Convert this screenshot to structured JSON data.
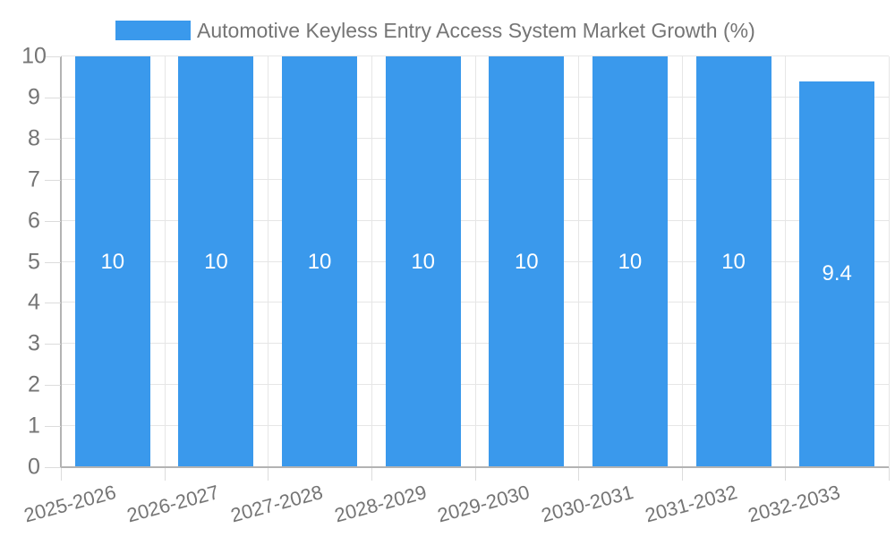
{
  "chart_data": {
    "type": "bar",
    "title": "Automotive Keyless Entry Access System Market Growth (%)",
    "legend_position": "top",
    "categories": [
      "2025-2026",
      "2026-2027",
      "2027-2028",
      "2028-2029",
      "2029-2030",
      "2030-2031",
      "2031-2032",
      "2032-2033"
    ],
    "series": [
      {
        "name": "Automotive Keyless Entry Access System Market Growth (%)",
        "values": [
          10,
          10,
          10,
          10,
          10,
          10,
          10,
          9.4
        ]
      }
    ],
    "value_labels": [
      "10",
      "10",
      "10",
      "10",
      "10",
      "10",
      "10",
      "9.4"
    ],
    "xlabel": "",
    "ylabel": "",
    "ylim": [
      0,
      10
    ],
    "yticks": [
      0,
      1,
      2,
      3,
      4,
      5,
      6,
      7,
      8,
      9,
      10
    ],
    "grid": true,
    "colors": {
      "bar": "#3A99EC",
      "grid_line": "#E6E6E6",
      "axis_line": "#B3B3B3",
      "tick_line": "#DCDCDC",
      "axis_text": "#757575",
      "value_label_text": "#FFFFFF"
    }
  }
}
